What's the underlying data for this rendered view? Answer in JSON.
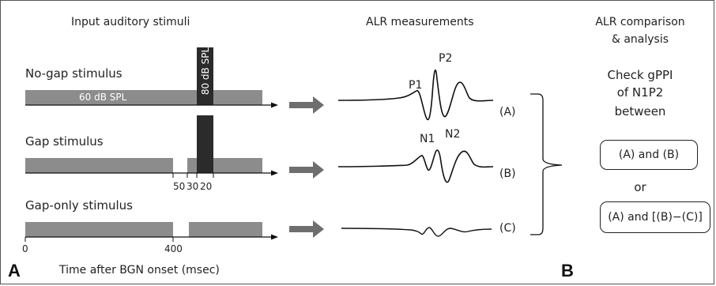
{
  "headers": {
    "input": "Input auditory stimuli",
    "alr": "ALR measurements",
    "comparison_line1": "ALR comparison",
    "comparison_line2": "& analysis"
  },
  "stimuli": {
    "no_gap": "No-gap stimulus",
    "gap": "Gap stimulus",
    "gap_only": "Gap-only stimulus",
    "bgn_level": "60 dB SPL",
    "pulse_level": "80 dB SPL"
  },
  "gap_ticks": [
    "50",
    "30",
    "20"
  ],
  "time_axis": {
    "ticks": [
      "0",
      "400"
    ],
    "label": "Time after BGN onset (msec)"
  },
  "waves": {
    "peaks": [
      "P1",
      "P2",
      "N1",
      "N2"
    ],
    "labels": [
      "(A)",
      "(B)",
      "(C)"
    ]
  },
  "analysis": {
    "check_line1": "Check gPPI",
    "check_line2": "of N1P2",
    "check_line3": "between",
    "option1": "(A) and (B)",
    "or": "or",
    "option2": "(A) and [(B)−(C)]"
  },
  "panels": [
    "A",
    "B"
  ],
  "colors": {
    "bgn": "#8c8c8c",
    "pulse": "#2b2b2b",
    "arrow": "#6e6e6e"
  }
}
